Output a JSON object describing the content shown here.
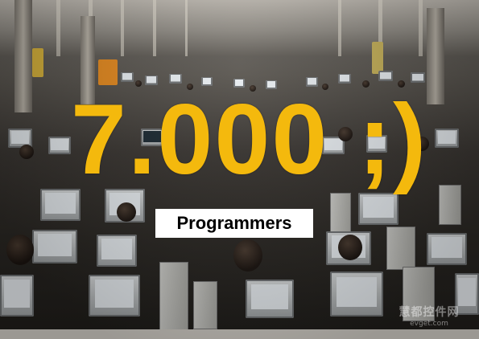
{
  "overlay": {
    "headline": "7.000 ;)",
    "caption": "Programmers",
    "headline_color": "#f4b90d",
    "caption_bg": "#ffffff"
  },
  "watermark": {
    "text_cn": "慧都控件网",
    "url": "evget.com"
  },
  "scene": {
    "subject": "large LAN party hall filled with rows of computers and people"
  }
}
